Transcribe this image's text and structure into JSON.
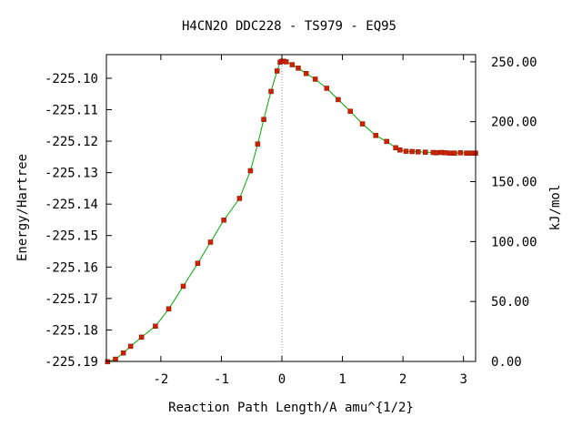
{
  "chart_data": {
    "type": "line",
    "title": "H4CN2O   DDC228 - TS979 - EQ95",
    "xlabel": "Reaction Path Length/A amu^{1/2}",
    "ylabel": "Energy/Hartree",
    "y2label": "kJ/mol",
    "xlim": [
      -2.9,
      3.2
    ],
    "ylim": [
      -225.19,
      -225.0925
    ],
    "y2lim": [
      0.0,
      255.985
    ],
    "x_ticks": [
      -2,
      -1,
      0,
      1,
      2,
      3
    ],
    "x_tick_labels": [
      "-2",
      "-1",
      "0",
      "1",
      "2",
      "3"
    ],
    "y_ticks": [
      -225.1,
      -225.11,
      -225.12,
      -225.13,
      -225.14,
      -225.15,
      -225.16,
      -225.17,
      -225.18,
      -225.19
    ],
    "y_tick_labels": [
      "-225.10",
      "-225.11",
      "-225.12",
      "-225.13",
      "-225.14",
      "-225.15",
      "-225.16",
      "-225.17",
      "-225.18",
      "-225.19"
    ],
    "y2_ticks": [
      0,
      50,
      100,
      150,
      200,
      250
    ],
    "y2_tick_labels": [
      "0.00",
      "50.00",
      "100.00",
      "150.00",
      "200.00",
      "250.00"
    ],
    "ts_marker_x": 0.0,
    "grid": false,
    "colors": {
      "line": "#00aa00",
      "point": "#cc2200",
      "ts_marker": "#999999"
    },
    "series": [
      {
        "x": [
          -2.88,
          -2.75,
          -2.62,
          -2.5,
          -2.32,
          -2.09,
          -1.87,
          -1.63,
          -1.39,
          -1.18,
          -0.96,
          -0.7,
          -0.52,
          -0.4,
          -0.3,
          -0.18,
          -0.08,
          -0.03,
          0.0,
          0.03,
          0.07,
          0.17,
          0.27,
          0.4,
          0.55,
          0.74,
          0.93,
          1.13,
          1.33,
          1.55,
          1.73,
          1.88,
          1.95,
          2.05,
          2.15,
          2.25,
          2.37,
          2.5,
          2.55,
          2.63,
          2.7,
          2.78,
          2.85,
          2.95,
          3.05,
          3.1,
          3.15,
          3.2
        ],
        "y": [
          -225.1901,
          -225.1893,
          -225.1873,
          -225.1852,
          -225.1823,
          -225.1788,
          -225.1733,
          -225.1661,
          -225.1588,
          -225.1521,
          -225.1451,
          -225.1382,
          -225.1294,
          -225.1209,
          -225.1131,
          -225.1042,
          -225.0977,
          -225.0949,
          -225.0946,
          -225.0946,
          -225.0948,
          -225.0957,
          -225.0968,
          -225.0985,
          -225.1003,
          -225.1032,
          -225.1068,
          -225.1105,
          -225.1145,
          -225.1182,
          -225.1201,
          -225.1221,
          -225.1228,
          -225.1232,
          -225.1233,
          -225.1234,
          -225.1235,
          -225.1236,
          -225.1237,
          -225.1236,
          -225.1237,
          -225.1238,
          -225.1238,
          -225.1237,
          -225.1238,
          -225.1238,
          -225.1238,
          -225.1238
        ]
      }
    ]
  }
}
